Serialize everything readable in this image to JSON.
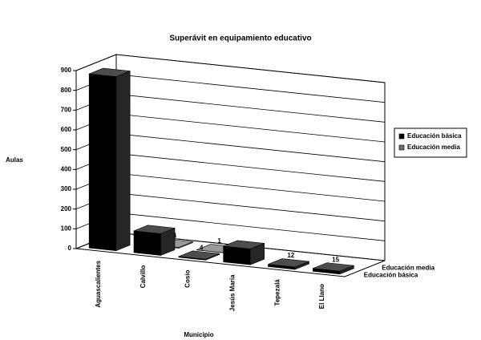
{
  "chart_data": {
    "type": "bar3d",
    "title": "Superávit en equipamiento educativo",
    "x_label": "Municipio",
    "y_label": "Aulas",
    "categories": [
      "Aguascalientes",
      "Calvillo",
      "Cosío",
      "Jesús María",
      "Tepezalá",
      "El Llano"
    ],
    "series": [
      {
        "name": "Educación básica",
        "color": "#000000",
        "values": [
          880,
          110,
          4,
          80,
          12,
          15
        ],
        "value_labels": [
          null,
          null,
          "4",
          null,
          "12",
          "15"
        ]
      },
      {
        "name": "Educación media",
        "color": "#6e6e6e",
        "values": [
          null,
          4,
          1,
          null,
          null,
          null
        ],
        "value_labels": [
          null,
          "4",
          "1",
          null,
          null,
          null
        ]
      }
    ],
    "ylim": [
      0,
      900
    ],
    "yticks": [
      0,
      100,
      200,
      300,
      400,
      500,
      600,
      700,
      800,
      900
    ],
    "grid": true,
    "legend": "right"
  }
}
